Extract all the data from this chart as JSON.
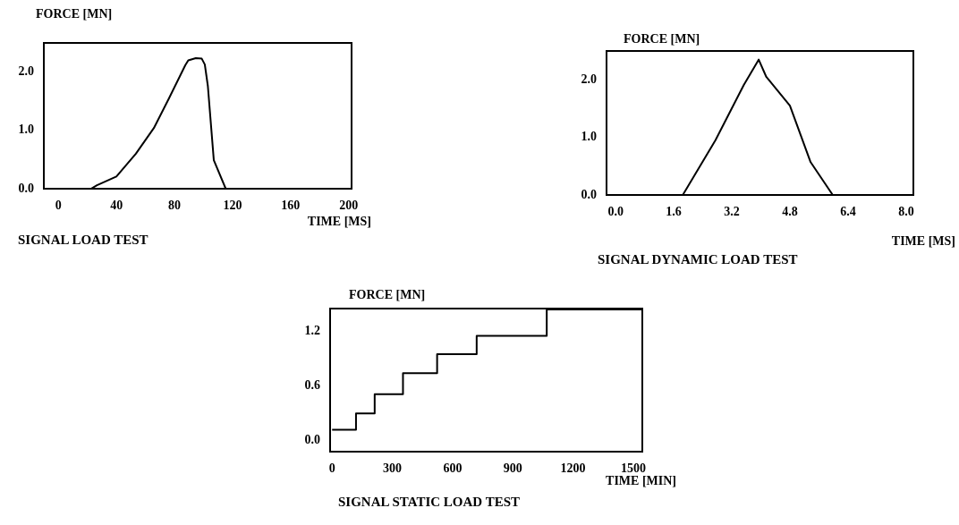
{
  "chart_data": [
    {
      "type": "line",
      "title": "SIGNAL LOAD TEST",
      "xlabel": "TIME [MS]",
      "ylabel": "FORCE [MN]",
      "xlim": [
        -10,
        202
      ],
      "ylim": [
        0,
        2.5
      ],
      "xticks": [
        0,
        40,
        80,
        120,
        160,
        200
      ],
      "yticks": [
        {
          "value": 0,
          "label": "0.0"
        },
        {
          "value": 1,
          "label": "1.0"
        },
        {
          "value": 2,
          "label": "2.0"
        }
      ],
      "series": [
        {
          "color": "#000000",
          "x": [
            0,
            22.5,
            26.6,
            40,
            53.4,
            65.8,
            76.2,
            87.5,
            89.5,
            94.7,
            98.8,
            100.9,
            103,
            107.1,
            115.3,
            200
          ],
          "values": [
            0,
            0,
            0.06,
            0.21,
            0.6,
            1.04,
            1.55,
            2.12,
            2.2,
            2.24,
            2.23,
            2.13,
            1.76,
            0.49,
            0,
            0
          ]
        }
      ]
    },
    {
      "type": "line",
      "title": "SIGNAL DYNAMIC LOAD TEST",
      "xlabel": "TIME [MS]",
      "ylabel": "FORCE [MN]",
      "xlim": [
        -0.25,
        8.2
      ],
      "ylim": [
        0,
        2.5
      ],
      "xticks": [
        {
          "value": 0,
          "label": "0.0"
        },
        1.6,
        3.2,
        4.8,
        6.4,
        {
          "value": 8,
          "label": "8.0"
        }
      ],
      "yticks": [
        {
          "value": 0,
          "label": "0.0"
        },
        {
          "value": 1,
          "label": "1.0"
        },
        {
          "value": 2,
          "label": "2.0"
        }
      ],
      "series": [
        {
          "color": "#000000",
          "x": [
            -0.25,
            1.85,
            2.75,
            3.53,
            3.94,
            4.15,
            4.8,
            5.37,
            5.98,
            8.2
          ],
          "values": [
            0,
            0,
            0.95,
            1.91,
            2.35,
            2.05,
            1.55,
            0.57,
            0,
            0
          ]
        }
      ]
    },
    {
      "type": "step",
      "title": "SIGNAL STATIC LOAD TEST",
      "xlabel": "TIME [MIN]",
      "ylabel": "FORCE [MN]",
      "xlim": [
        -10,
        1545
      ],
      "ylim": [
        -0.12,
        1.45
      ],
      "xticks": [
        0,
        300,
        600,
        900,
        1200,
        1500
      ],
      "yticks": [
        {
          "value": 0,
          "label": "0.0"
        },
        0.6,
        1.2
      ],
      "series": [
        {
          "color": "#000000",
          "x": [
            0,
            119,
            212,
            353,
            523,
            720,
            1069,
            1545
          ],
          "values": [
            0.12,
            0.3,
            0.51,
            0.74,
            0.95,
            1.15,
            1.44,
            1.44
          ]
        }
      ]
    }
  ]
}
